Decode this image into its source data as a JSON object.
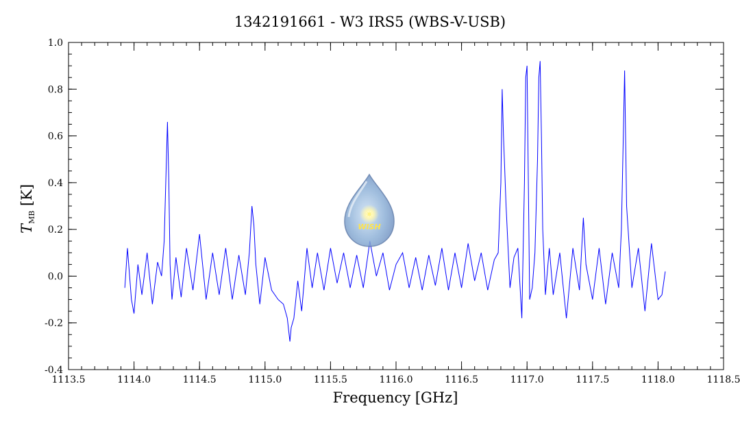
{
  "chart_data": {
    "type": "line",
    "title": "1342191661 - W3 IRS5 (WBS-V-USB)",
    "xlabel": "Frequency [GHz]",
    "ylabel": {
      "symbol": "T",
      "subscript": "MB",
      "unit": " [K]"
    },
    "xlim": [
      1113.5,
      1118.5
    ],
    "ylim": [
      -0.4,
      1.0
    ],
    "x_ticks": [
      "1113.5",
      "1114.0",
      "1114.5",
      "1115.0",
      "1115.5",
      "1116.0",
      "1116.5",
      "1117.0",
      "1117.5",
      "1118.0",
      "1118.5"
    ],
    "y_ticks": [
      "-0.4",
      "-0.2",
      "0.0",
      "0.2",
      "0.4",
      "0.6",
      "0.8",
      "1.0"
    ],
    "x_tick_values": [
      1113.5,
      1114.0,
      1114.5,
      1115.0,
      1115.5,
      1116.0,
      1116.5,
      1117.0,
      1117.5,
      1118.0,
      1118.5
    ],
    "y_tick_values": [
      -0.4,
      -0.2,
      0.0,
      0.2,
      0.4,
      0.6,
      0.8,
      1.0
    ],
    "grid": false,
    "series_color": "#0000ff",
    "series": [
      {
        "x": [
          1113.93,
          1113.95,
          1113.98,
          1114.0,
          1114.03,
          1114.06,
          1114.1,
          1114.14,
          1114.18,
          1114.21,
          1114.23,
          1114.245,
          1114.255,
          1114.265,
          1114.275,
          1114.29,
          1114.32,
          1114.36,
          1114.4,
          1114.45,
          1114.5,
          1114.55,
          1114.6,
          1114.65,
          1114.7,
          1114.75,
          1114.8,
          1114.85,
          1114.88,
          1114.9,
          1114.915,
          1114.93,
          1114.96,
          1115.0,
          1115.05,
          1115.1,
          1115.14,
          1115.17,
          1115.19,
          1115.2,
          1115.22,
          1115.25,
          1115.28,
          1115.32,
          1115.36,
          1115.4,
          1115.45,
          1115.5,
          1115.55,
          1115.6,
          1115.65,
          1115.7,
          1115.75,
          1115.8,
          1115.85,
          1115.9,
          1115.95,
          1116.0,
          1116.05,
          1116.1,
          1116.15,
          1116.2,
          1116.25,
          1116.3,
          1116.35,
          1116.4,
          1116.45,
          1116.5,
          1116.55,
          1116.6,
          1116.65,
          1116.7,
          1116.75,
          1116.78,
          1116.8,
          1116.81,
          1116.82,
          1116.84,
          1116.87,
          1116.9,
          1116.93,
          1116.96,
          1116.98,
          1116.99,
          1117.0,
          1117.01,
          1117.02,
          1117.04,
          1117.06,
          1117.08,
          1117.09,
          1117.1,
          1117.11,
          1117.12,
          1117.14,
          1117.17,
          1117.2,
          1117.25,
          1117.3,
          1117.35,
          1117.4,
          1117.43,
          1117.45,
          1117.5,
          1117.55,
          1117.6,
          1117.65,
          1117.7,
          1117.72,
          1117.735,
          1117.745,
          1117.76,
          1117.8,
          1117.85,
          1117.9,
          1117.95,
          1118.0,
          1118.03,
          1118.055
        ],
        "y": [
          -0.05,
          0.12,
          -0.1,
          -0.16,
          0.05,
          -0.08,
          0.1,
          -0.12,
          0.06,
          0.0,
          0.15,
          0.45,
          0.66,
          0.42,
          0.05,
          -0.1,
          0.08,
          -0.09,
          0.12,
          -0.06,
          0.18,
          -0.1,
          0.1,
          -0.08,
          0.12,
          -0.1,
          0.09,
          -0.08,
          0.1,
          0.3,
          0.22,
          0.05,
          -0.12,
          0.08,
          -0.06,
          -0.1,
          -0.12,
          -0.18,
          -0.28,
          -0.22,
          -0.18,
          -0.02,
          -0.15,
          0.12,
          -0.05,
          0.1,
          -0.06,
          0.12,
          -0.03,
          0.1,
          -0.05,
          0.09,
          -0.05,
          0.15,
          0.0,
          0.1,
          -0.06,
          0.05,
          0.1,
          -0.05,
          0.08,
          -0.06,
          0.09,
          -0.04,
          0.12,
          -0.06,
          0.1,
          -0.05,
          0.14,
          -0.02,
          0.1,
          -0.06,
          0.07,
          0.1,
          0.4,
          0.8,
          0.6,
          0.3,
          -0.05,
          0.08,
          0.12,
          -0.18,
          0.4,
          0.85,
          0.9,
          0.4,
          -0.1,
          -0.05,
          0.1,
          0.5,
          0.85,
          0.92,
          0.6,
          0.2,
          -0.08,
          0.12,
          -0.08,
          0.1,
          -0.18,
          0.12,
          -0.06,
          0.25,
          0.05,
          -0.1,
          0.12,
          -0.12,
          0.1,
          -0.05,
          0.2,
          0.6,
          0.88,
          0.3,
          -0.05,
          0.12,
          -0.15,
          0.14,
          -0.1,
          -0.08,
          0.02
        ]
      }
    ],
    "logo": "WISH",
    "logo_color": "#7f9fc8",
    "logo_text_color": "#ffe34a"
  }
}
